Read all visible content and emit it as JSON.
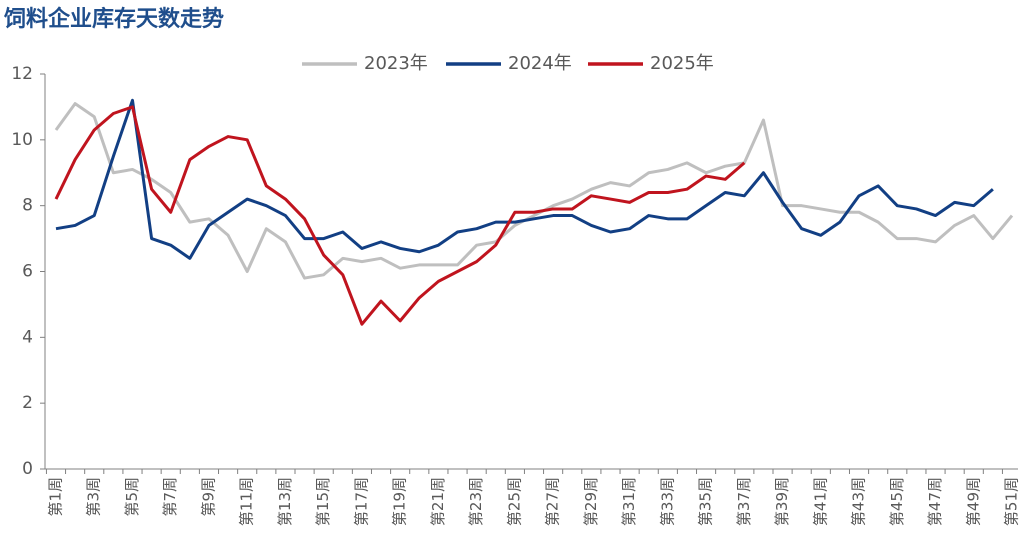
{
  "chart_data": {
    "type": "line",
    "title": "饲料企业库存天数走势",
    "categories": [
      "第1周",
      null,
      "第3周",
      null,
      "第5周",
      null,
      "第7周",
      null,
      "第9周",
      null,
      "第11周",
      null,
      "第13周",
      null,
      "第15周",
      null,
      "第17周",
      null,
      "第19周",
      null,
      "第21周",
      null,
      "第23周",
      null,
      "第25周",
      null,
      "第27周",
      null,
      "第29周",
      null,
      "第31周",
      null,
      "第33周",
      null,
      "第35周",
      null,
      "第37周",
      null,
      "第39周",
      null,
      "第41周",
      null,
      "第43周",
      null,
      "第45周",
      null,
      "第47周",
      null,
      "第49周",
      null,
      "第51周"
    ],
    "series": [
      {
        "name": "2023年",
        "color": "#bfbfbf",
        "values": [
          10.3,
          11.1,
          10.7,
          9.0,
          9.1,
          8.8,
          8.4,
          7.5,
          7.6,
          7.1,
          6.0,
          7.3,
          6.9,
          5.8,
          5.9,
          6.4,
          6.3,
          6.4,
          6.1,
          6.2,
          6.2,
          6.2,
          6.8,
          6.9,
          7.4,
          7.7,
          8.0,
          8.2,
          8.5,
          8.7,
          8.6,
          9.0,
          9.1,
          9.3,
          9.0,
          9.2,
          9.3,
          10.6,
          8.0,
          8.0,
          7.9,
          7.8,
          7.8,
          7.5,
          7.0,
          7.0,
          6.9,
          7.4,
          7.7,
          7.0,
          7.7
        ]
      },
      {
        "name": "2024年",
        "color": "#123f84",
        "values": [
          7.3,
          7.4,
          7.7,
          9.5,
          11.2,
          7.0,
          6.8,
          6.4,
          7.4,
          7.8,
          8.2,
          8.0,
          7.7,
          7.0,
          7.0,
          7.2,
          6.7,
          6.9,
          6.7,
          6.6,
          6.8,
          7.2,
          7.3,
          7.5,
          7.5,
          7.6,
          7.7,
          7.7,
          7.4,
          7.2,
          7.3,
          7.7,
          7.6,
          7.6,
          8.0,
          8.4,
          8.3,
          9.0,
          8.1,
          7.3,
          7.1,
          7.5,
          8.3,
          8.6,
          8.0,
          7.9,
          7.7,
          8.1,
          8.0,
          8.5,
          null
        ]
      },
      {
        "name": "2025年",
        "color": "#c0141e",
        "values": [
          8.2,
          9.4,
          10.3,
          10.8,
          11.0,
          8.5,
          7.8,
          9.4,
          9.8,
          10.1,
          10.0,
          8.6,
          8.2,
          7.6,
          6.5,
          5.9,
          4.4,
          5.1,
          4.5,
          5.2,
          5.7,
          6.0,
          6.3,
          6.8,
          7.8,
          7.8,
          7.9,
          7.9,
          8.3,
          8.2,
          8.1,
          8.4,
          8.4,
          8.5,
          8.9,
          8.8,
          9.3,
          null,
          null,
          null,
          null,
          null,
          null,
          null,
          null,
          null,
          null,
          null,
          null,
          null,
          null
        ]
      }
    ],
    "ylim": [
      0,
      12
    ],
    "yticks": [
      0,
      2,
      4,
      6,
      8,
      10,
      12
    ],
    "grid": false,
    "legend": "top"
  }
}
